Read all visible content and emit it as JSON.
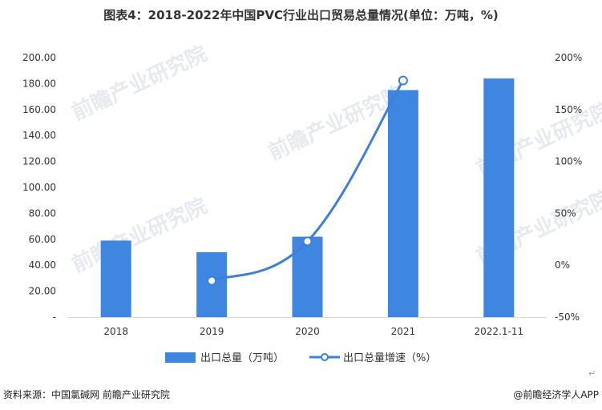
{
  "title": "图表4：2018-2022年中国PVC行业出口贸易总量情况(单位：万吨，%)",
  "chart_data": {
    "type": "bar",
    "categories": [
      "2018",
      "2019",
      "2020",
      "2021",
      "2022.1-11"
    ],
    "series": [
      {
        "name": "出口总量（万吨）",
        "type": "bar",
        "axis": "left",
        "values": [
          59,
          50,
          62,
          175,
          184
        ]
      },
      {
        "name": "出口总量增速（%）",
        "type": "line",
        "axis": "right",
        "values": [
          null,
          -15,
          23,
          178,
          null
        ]
      }
    ],
    "y_left": {
      "range": [
        0,
        200
      ],
      "ticks": [
        "-",
        "20.00",
        "40.00",
        "60.00",
        "80.00",
        "100.00",
        "120.00",
        "140.00",
        "160.00",
        "180.00",
        "200.00"
      ]
    },
    "y_right": {
      "range": [
        -50,
        200
      ],
      "ticks": [
        "-50%",
        "0%",
        "50%",
        "100%",
        "150%",
        "200%"
      ]
    },
    "legend_position": "bottom",
    "grid": false,
    "colors": {
      "bar": "#3f86e0",
      "line": "#3f7fd6",
      "marker_fill": "#ffffff"
    }
  },
  "watermark": "前瞻产业研究院",
  "footer": {
    "source": "资料来源：中国氯碱网 前瞻产业研究院",
    "brand": "@前瞻经济学人APP",
    "return_mark": "↵"
  }
}
